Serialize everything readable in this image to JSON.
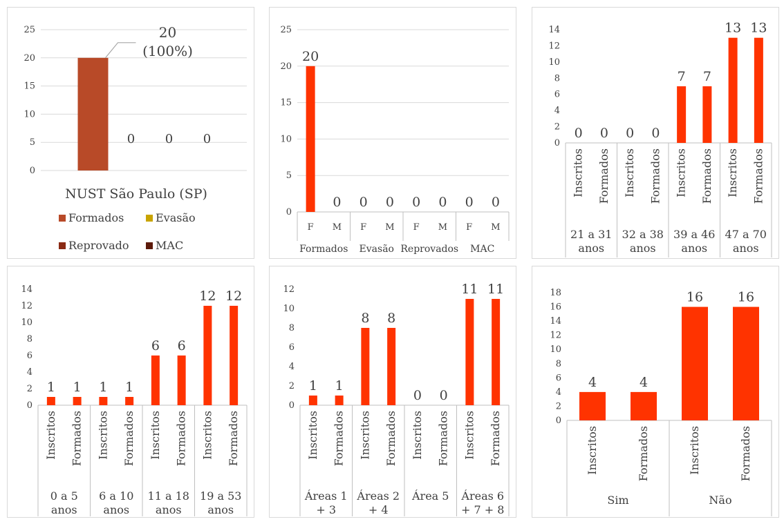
{
  "chart_data": [
    {
      "type": "bar",
      "title": "",
      "categories": [
        "NUST São Paulo (SP)"
      ],
      "series": [
        {
          "name": "Formados",
          "values": [
            20
          ],
          "label": "20\n(100%)"
        },
        {
          "name": "Evasão",
          "values": [
            0
          ],
          "label": "0"
        },
        {
          "name": "Reprovado",
          "values": [
            0
          ],
          "label": "0"
        },
        {
          "name": "MAC",
          "values": [
            0
          ],
          "label": "0"
        }
      ],
      "colors": [
        "#b84a28",
        "#c9a400",
        "#8a2a14",
        "#5c1a0a"
      ],
      "ylim": [
        0,
        25
      ],
      "yticks": [
        0,
        5,
        10,
        15,
        20,
        25
      ],
      "grid": true,
      "legend": "bottom"
    },
    {
      "type": "bar",
      "title": "",
      "groups": [
        "Formados",
        "Evasão",
        "Reprovados",
        "MAC"
      ],
      "subcategories": [
        "F",
        "M",
        "F",
        "M",
        "F",
        "M",
        "F",
        "M"
      ],
      "values": [
        20,
        0,
        0,
        0,
        0,
        0,
        0,
        0
      ],
      "color": "#ff3300",
      "ylim": [
        0,
        25
      ],
      "yticks": [
        0,
        5,
        10,
        15,
        20,
        25
      ],
      "grid": true
    },
    {
      "type": "bar",
      "title": "",
      "groups": [
        "21 a 31 anos",
        "32 a 38 anos",
        "39 a 46 anos",
        "47 a 70 anos"
      ],
      "subcategories": [
        "Inscritos",
        "Formados",
        "Inscritos",
        "Formados",
        "Inscritos",
        "Formados",
        "Inscritos",
        "Formados"
      ],
      "values": [
        0,
        0,
        0,
        0,
        7,
        7,
        13,
        13
      ],
      "color": "#ff3300",
      "ylim": [
        0,
        14
      ],
      "yticks": [
        0,
        2,
        4,
        6,
        8,
        10,
        12,
        14
      ],
      "grid": false
    },
    {
      "type": "bar",
      "title": "",
      "groups": [
        "0 a 5 anos",
        "6 a 10 anos",
        "11 a 18 anos",
        "19 a 53 anos"
      ],
      "subcategories": [
        "Inscritos",
        "Formados",
        "Inscritos",
        "Formados",
        "Inscritos",
        "Formados",
        "Inscritos",
        "Formados"
      ],
      "values": [
        1,
        1,
        1,
        1,
        6,
        6,
        12,
        12
      ],
      "color": "#ff3300",
      "ylim": [
        0,
        14
      ],
      "yticks": [
        0,
        2,
        4,
        6,
        8,
        10,
        12,
        14
      ],
      "grid": false
    },
    {
      "type": "bar",
      "title": "",
      "groups": [
        "Áreas 1 + 3",
        "Áreas 2 + 4",
        "Área 5",
        "Áreas 6 + 7 + 8"
      ],
      "subcategories": [
        "Inscritos",
        "Formados",
        "Inscritos",
        "Formados",
        "Inscritos",
        "Formados",
        "Inscritos",
        "Formados"
      ],
      "values": [
        1,
        1,
        8,
        8,
        0,
        0,
        11,
        11
      ],
      "color": "#ff3300",
      "ylim": [
        0,
        12
      ],
      "yticks": [
        0,
        2,
        4,
        6,
        8,
        10,
        12
      ],
      "grid": false
    },
    {
      "type": "bar",
      "title": "",
      "groups": [
        "Sim",
        "Não"
      ],
      "subcategories": [
        "Inscritos",
        "Formados",
        "Inscritos",
        "Formados"
      ],
      "values": [
        4,
        4,
        16,
        16
      ],
      "color": "#ff3300",
      "ylim": [
        0,
        18
      ],
      "yticks": [
        0,
        2,
        4,
        6,
        8,
        10,
        12,
        14,
        16,
        18
      ],
      "grid": false
    }
  ]
}
